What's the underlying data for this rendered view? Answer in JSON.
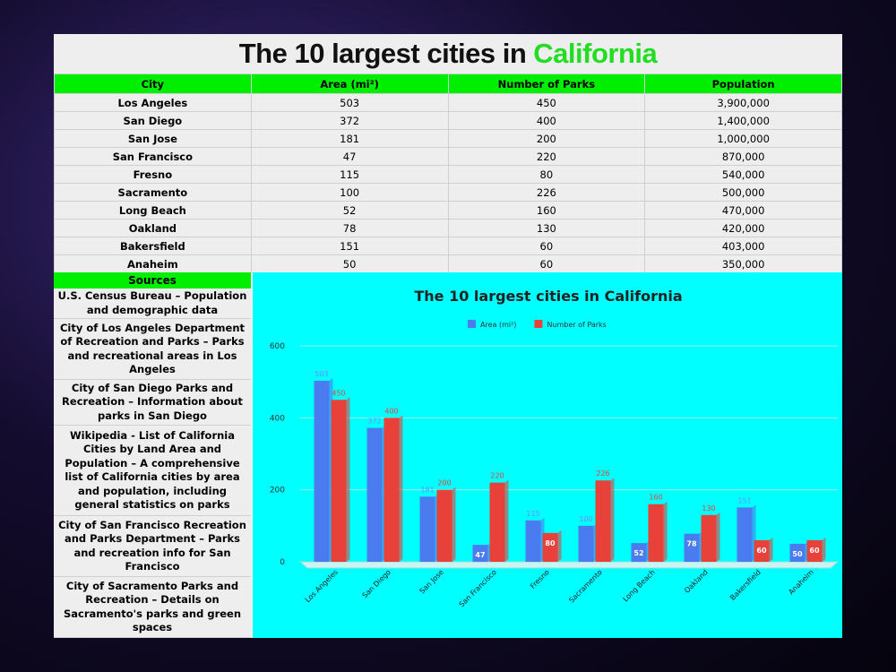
{
  "title": {
    "text": "The 10 largest cities in",
    "highlight": "California"
  },
  "table": {
    "header": [
      "City",
      "Area (mi²)",
      "Number of Parks",
      "Population"
    ],
    "rows": [
      [
        "Los Angeles",
        503,
        450,
        "3,900,000"
      ],
      [
        "San Diego",
        372,
        400,
        "1,400,000"
      ],
      [
        "San Jose",
        181,
        200,
        "1,000,000"
      ],
      [
        "San Francisco",
        47,
        220,
        "870,000"
      ],
      [
        "Fresno",
        115,
        80,
        "540,000"
      ],
      [
        "Sacramento",
        100,
        226,
        "500,000"
      ],
      [
        "Long Beach",
        52,
        160,
        "470,000"
      ],
      [
        "Oakland",
        78,
        130,
        "420,000"
      ],
      [
        "Bakersfield",
        151,
        60,
        "403,000"
      ],
      [
        "Anaheim",
        50,
        60,
        "350,000"
      ]
    ]
  },
  "sources": {
    "header": "Sources",
    "items": [
      "U.S. Census Bureau – Population and demographic data",
      "City of Los Angeles Department of Recreation and Parks – Parks and recreational areas in Los Angeles",
      "City of San Diego Parks and Recreation – Information about parks in San Diego",
      "Wikipedia - List of California Cities by Land Area and Population – A comprehensive list of California cities by area and population, including general statistics on parks",
      "City of San Francisco Recreation and Parks Department – Parks and recreation info for San Francisco",
      "City of Sacramento Parks and Recreation – Details on Sacramento's parks and green spaces"
    ]
  },
  "chart_data": {
    "type": "bar",
    "title": "The 10 largest cities in California",
    "categories": [
      "Los Angeles",
      "San Diego",
      "San Jose",
      "San Francisco",
      "Fresno",
      "Sacramento",
      "Long Beach",
      "Oakland",
      "Bakersfield",
      "Anaheim"
    ],
    "series": [
      {
        "name": "Area (mi²)",
        "color": "#4a7cf0",
        "values": [
          503,
          372,
          181,
          47,
          115,
          100,
          52,
          78,
          151,
          50
        ]
      },
      {
        "name": "Number of Parks",
        "color": "#e8413a",
        "values": [
          450,
          400,
          200,
          220,
          80,
          226,
          160,
          130,
          60,
          60
        ]
      }
    ],
    "ylim": [
      0,
      600
    ],
    "yticks": [
      0,
      200,
      400,
      600
    ],
    "grid": true,
    "legend": "top"
  }
}
